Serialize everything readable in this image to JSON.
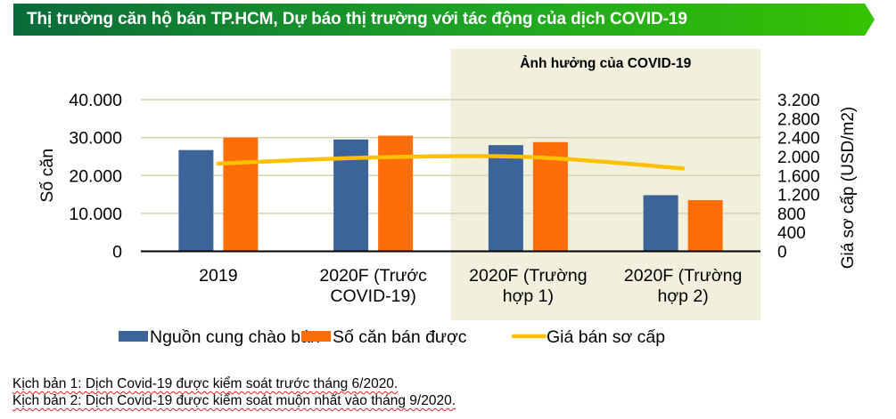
{
  "header": {
    "title": "Thị trường căn hộ bán TP.HCM, Dự báo thị trường với tác động của dịch COVID-19"
  },
  "chart_data": {
    "type": "bar",
    "title": "Thị trường căn hộ bán TP.HCM, Dự báo thị trường với tác động của dịch COVID-19",
    "categories": [
      "2019",
      "2020F (Trước COVID-19)",
      "2020F (Trường hợp 1)",
      "2020F (Trường hợp 2)"
    ],
    "category_lines": [
      [
        "2019"
      ],
      [
        "2020F (Trước",
        "COVID-19)"
      ],
      [
        "2020F (Trường",
        "hợp 1)"
      ],
      [
        "2020F (Trường",
        "hợp 2)"
      ]
    ],
    "series": [
      {
        "name": "Nguồn cung chào bán",
        "type": "bar",
        "axis": "left",
        "color": "#3d6499",
        "values": [
          26700,
          29500,
          28000,
          14800
        ]
      },
      {
        "name": "Số căn bán được",
        "type": "bar",
        "axis": "left",
        "color": "#ff6d08",
        "values": [
          30000,
          30500,
          28800,
          13500
        ]
      },
      {
        "name": "Giá bán sơ cấp",
        "type": "line",
        "axis": "right",
        "color": "#ffc000",
        "values": [
          1850,
          1980,
          1990,
          1750
        ]
      }
    ],
    "xlabel": "",
    "ylabel": "Số căn",
    "ylabel_right": "Giá sơ cấp (USD/m2)",
    "ylim": [
      0,
      40000
    ],
    "ylim_right": [
      0,
      3200
    ],
    "yticks": [
      "0",
      "10.000",
      "20.000",
      "30.000",
      "40.000"
    ],
    "yticks_right": [
      "0",
      "400",
      "800",
      "1.200",
      "1.600",
      "2.000",
      "2.400",
      "2.800",
      "3.200"
    ],
    "grid": true,
    "legend_position": "bottom",
    "annotation": {
      "text": "Ảnh hưởng của COVID-19",
      "span_categories": [
        2,
        3
      ],
      "fill": "#f0f0dc"
    }
  },
  "footnotes": [
    {
      "prefix": "Kịch bản 1:",
      "text": "Kịch bản 1: Dịch Covid-19 được kiểm soát trước tháng 6/2020."
    },
    {
      "prefix": "Kịch bản 2:",
      "text": "Kịch bản 2: Dịch Covid-19 được kiểm soát muộn nhất vào tháng 9/2020."
    }
  ],
  "colors": {
    "banner_start": "#0a6a3a",
    "banner_end": "#35c300",
    "gridline": "#d6d2b0",
    "axis": "#000000"
  }
}
